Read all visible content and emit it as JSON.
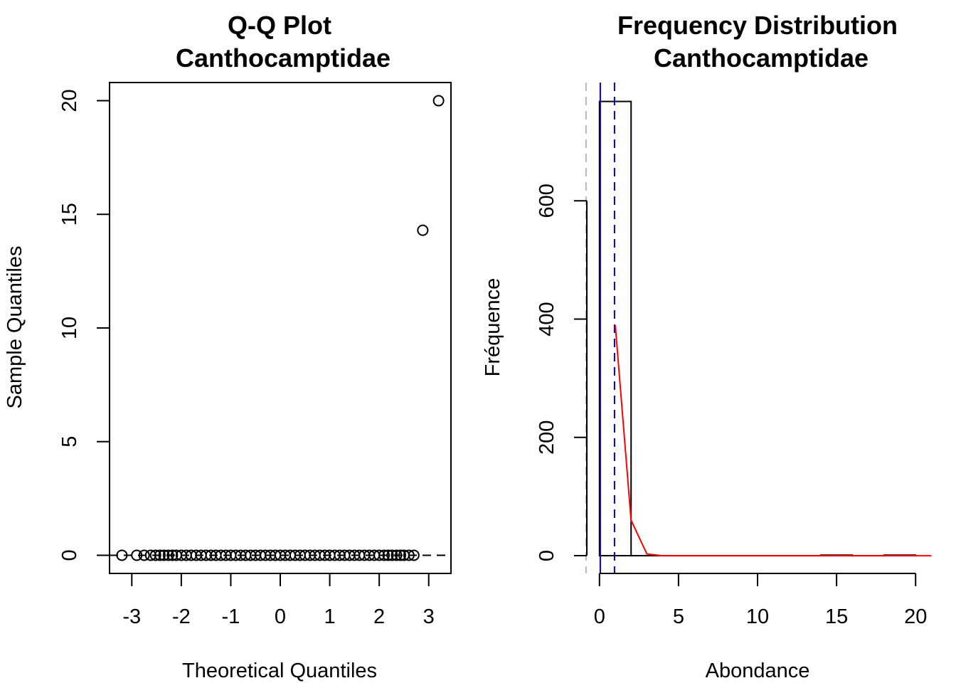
{
  "chart_data": [
    {
      "type": "scatter",
      "title": "Q-Q Plot",
      "subtitle": "Canthocamptidae",
      "xlabel": "Theoretical Quantiles",
      "ylabel": "Sample Quantiles",
      "xlim": [
        -3.45,
        3.45
      ],
      "ylim": [
        -0.8,
        20.8
      ],
      "x_ticks": [
        -3,
        -2,
        -1,
        0,
        1,
        2,
        3
      ],
      "y_ticks": [
        0,
        5,
        10,
        15,
        20
      ],
      "points": [
        {
          "x": -3.2,
          "y": 0
        },
        {
          "x": -2.9,
          "y": 0
        },
        {
          "x": -2.75,
          "y": 0
        },
        {
          "x": -2.62,
          "y": 0
        },
        {
          "x": -2.52,
          "y": 0
        },
        {
          "x": -2.43,
          "y": 0
        },
        {
          "x": -2.35,
          "y": 0
        },
        {
          "x": -2.26,
          "y": 0
        },
        {
          "x": -2.18,
          "y": 0
        },
        {
          "x": -2.1,
          "y": 0
        },
        {
          "x": -2.0,
          "y": 0
        },
        {
          "x": -1.9,
          "y": 0
        },
        {
          "x": -1.8,
          "y": 0
        },
        {
          "x": -1.7,
          "y": 0
        },
        {
          "x": -1.6,
          "y": 0
        },
        {
          "x": -1.5,
          "y": 0
        },
        {
          "x": -1.4,
          "y": 0
        },
        {
          "x": -1.3,
          "y": 0
        },
        {
          "x": -1.2,
          "y": 0
        },
        {
          "x": -1.1,
          "y": 0
        },
        {
          "x": -1.0,
          "y": 0
        },
        {
          "x": -0.9,
          "y": 0
        },
        {
          "x": -0.8,
          "y": 0
        },
        {
          "x": -0.7,
          "y": 0
        },
        {
          "x": -0.6,
          "y": 0
        },
        {
          "x": -0.5,
          "y": 0
        },
        {
          "x": -0.4,
          "y": 0
        },
        {
          "x": -0.3,
          "y": 0
        },
        {
          "x": -0.2,
          "y": 0
        },
        {
          "x": -0.1,
          "y": 0
        },
        {
          "x": 0.0,
          "y": 0
        },
        {
          "x": 0.1,
          "y": 0
        },
        {
          "x": 0.2,
          "y": 0
        },
        {
          "x": 0.3,
          "y": 0
        },
        {
          "x": 0.4,
          "y": 0
        },
        {
          "x": 0.5,
          "y": 0
        },
        {
          "x": 0.6,
          "y": 0
        },
        {
          "x": 0.7,
          "y": 0
        },
        {
          "x": 0.8,
          "y": 0
        },
        {
          "x": 0.9,
          "y": 0
        },
        {
          "x": 1.0,
          "y": 0
        },
        {
          "x": 1.1,
          "y": 0
        },
        {
          "x": 1.2,
          "y": 0
        },
        {
          "x": 1.3,
          "y": 0
        },
        {
          "x": 1.4,
          "y": 0
        },
        {
          "x": 1.5,
          "y": 0
        },
        {
          "x": 1.6,
          "y": 0
        },
        {
          "x": 1.7,
          "y": 0
        },
        {
          "x": 1.8,
          "y": 0
        },
        {
          "x": 1.9,
          "y": 0
        },
        {
          "x": 2.0,
          "y": 0
        },
        {
          "x": 2.1,
          "y": 0
        },
        {
          "x": 2.18,
          "y": 0
        },
        {
          "x": 2.26,
          "y": 0
        },
        {
          "x": 2.35,
          "y": 0
        },
        {
          "x": 2.43,
          "y": 0
        },
        {
          "x": 2.5,
          "y": 0
        },
        {
          "x": 2.6,
          "y": 0
        },
        {
          "x": 2.7,
          "y": 0
        },
        {
          "x": 2.88,
          "y": 14.3
        },
        {
          "x": 3.2,
          "y": 20
        }
      ],
      "reference_line": {
        "intercept": 0,
        "slope": 0,
        "style": "dashed",
        "color": "#000000"
      }
    },
    {
      "type": "bar",
      "title": "Frequency Distribution",
      "subtitle": "Canthocamptidae",
      "xlabel": "Abondance",
      "ylabel": "Fréquence",
      "xlim": [
        -0.8,
        20.8
      ],
      "ylim": [
        -30,
        800
      ],
      "x_ticks": [
        0,
        5,
        10,
        15,
        20
      ],
      "y_ticks": [
        0,
        200,
        400,
        600
      ],
      "bins": [
        {
          "x0": 0,
          "x1": 2,
          "count": 768
        },
        {
          "x0": 2,
          "x1": 4,
          "count": 0
        },
        {
          "x0": 4,
          "x1": 6,
          "count": 0
        },
        {
          "x0": 6,
          "x1": 8,
          "count": 0
        },
        {
          "x0": 8,
          "x1": 10,
          "count": 0
        },
        {
          "x0": 10,
          "x1": 12,
          "count": 0
        },
        {
          "x0": 12,
          "x1": 14,
          "count": 0
        },
        {
          "x0": 14,
          "x1": 16,
          "count": 1
        },
        {
          "x0": 16,
          "x1": 18,
          "count": 0
        },
        {
          "x0": 18,
          "x1": 20,
          "count": 1
        }
      ],
      "density_curve": {
        "color": "#ff0000",
        "x": [
          1,
          2,
          3,
          4,
          5,
          6,
          7,
          8,
          9,
          10,
          11,
          12,
          13,
          14,
          15,
          16,
          17,
          18,
          19,
          20,
          21
        ],
        "y": [
          390,
          60,
          3,
          0,
          0,
          0,
          0,
          0,
          0,
          0,
          0,
          0,
          0,
          0,
          0,
          0,
          0,
          0,
          0,
          0,
          0
        ]
      },
      "vlines": [
        {
          "x": 0.05,
          "style": "solid",
          "color": "#0000cc"
        },
        {
          "x": 0.95,
          "style": "dashed",
          "color": "#0000cc"
        },
        {
          "x": -0.85,
          "style": "dashed",
          "color": "#bbbbbb"
        }
      ]
    }
  ]
}
